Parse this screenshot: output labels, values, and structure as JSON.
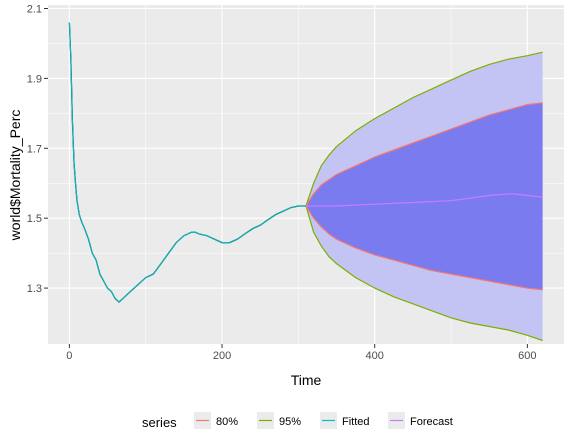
{
  "chart_data": {
    "type": "line",
    "title": "",
    "xlabel": "Time",
    "ylabel": "world$Mortality_Perc",
    "xlim": [
      -28,
      648
    ],
    "ylim": [
      1.14,
      2.11
    ],
    "x_ticks": [
      0,
      200,
      400,
      600
    ],
    "y_ticks": [
      1.3,
      1.5,
      1.7,
      1.9,
      2.1
    ],
    "x_tick_labels": [
      "0",
      "200",
      "400",
      "600"
    ],
    "y_tick_labels": [
      "1.3",
      "1.5",
      "1.7",
      "1.9",
      "2.1"
    ],
    "grid": true,
    "legend_position": "bottom",
    "legend_title": "series",
    "legend": [
      {
        "name": "80%",
        "color": "#F8766D"
      },
      {
        "name": "95%",
        "color": "#7CAE00"
      },
      {
        "name": "Fitted",
        "color": "#00BFC4"
      },
      {
        "name": "Forecast",
        "color": "#C77CFF"
      }
    ],
    "colors": {
      "panel_bg": "#EBEBEB",
      "grid": "#FFFFFF",
      "band80_fill": "#7B7BF0",
      "band95_fill": "#C4C4F4",
      "actual_line": "#000000"
    },
    "series": [
      {
        "name": "Fitted",
        "x": [
          0,
          2,
          4,
          6,
          8,
          10,
          13,
          16,
          20,
          25,
          30,
          35,
          40,
          45,
          50,
          55,
          60,
          65,
          70,
          75,
          80,
          90,
          100,
          110,
          120,
          130,
          140,
          150,
          160,
          165,
          170,
          180,
          190,
          200,
          210,
          220,
          230,
          240,
          250,
          260,
          270,
          280,
          290,
          300,
          310
        ],
        "y": [
          2.06,
          1.95,
          1.78,
          1.66,
          1.6,
          1.55,
          1.51,
          1.49,
          1.47,
          1.44,
          1.4,
          1.38,
          1.34,
          1.32,
          1.3,
          1.29,
          1.27,
          1.26,
          1.27,
          1.28,
          1.29,
          1.31,
          1.33,
          1.34,
          1.37,
          1.4,
          1.43,
          1.45,
          1.46,
          1.46,
          1.455,
          1.45,
          1.44,
          1.43,
          1.43,
          1.44,
          1.455,
          1.47,
          1.48,
          1.495,
          1.51,
          1.52,
          1.53,
          1.535,
          1.535
        ]
      },
      {
        "name": "Forecast",
        "x": [
          310,
          350,
          400,
          450,
          500,
          550,
          580,
          600,
          620
        ],
        "y": [
          1.535,
          1.535,
          1.54,
          1.545,
          1.55,
          1.565,
          1.57,
          1.565,
          1.56
        ]
      },
      {
        "name": "80%",
        "x": [
          310,
          320,
          330,
          340,
          350,
          375,
          400,
          425,
          450,
          475,
          500,
          525,
          550,
          575,
          600,
          620
        ],
        "lower": [
          1.535,
          1.5,
          1.475,
          1.455,
          1.44,
          1.415,
          1.395,
          1.38,
          1.365,
          1.35,
          1.34,
          1.33,
          1.32,
          1.31,
          1.3,
          1.295
        ],
        "upper": [
          1.535,
          1.57,
          1.595,
          1.61,
          1.625,
          1.65,
          1.675,
          1.695,
          1.715,
          1.735,
          1.755,
          1.775,
          1.795,
          1.81,
          1.825,
          1.83
        ]
      },
      {
        "name": "95%",
        "x": [
          310,
          320,
          330,
          340,
          350,
          375,
          400,
          425,
          450,
          475,
          500,
          525,
          550,
          575,
          600,
          620
        ],
        "lower": [
          1.535,
          1.46,
          1.42,
          1.39,
          1.37,
          1.33,
          1.3,
          1.275,
          1.255,
          1.235,
          1.215,
          1.2,
          1.19,
          1.18,
          1.165,
          1.15
        ],
        "upper": [
          1.535,
          1.6,
          1.65,
          1.68,
          1.705,
          1.75,
          1.785,
          1.815,
          1.845,
          1.87,
          1.895,
          1.92,
          1.94,
          1.955,
          1.965,
          1.975
        ]
      }
    ]
  }
}
